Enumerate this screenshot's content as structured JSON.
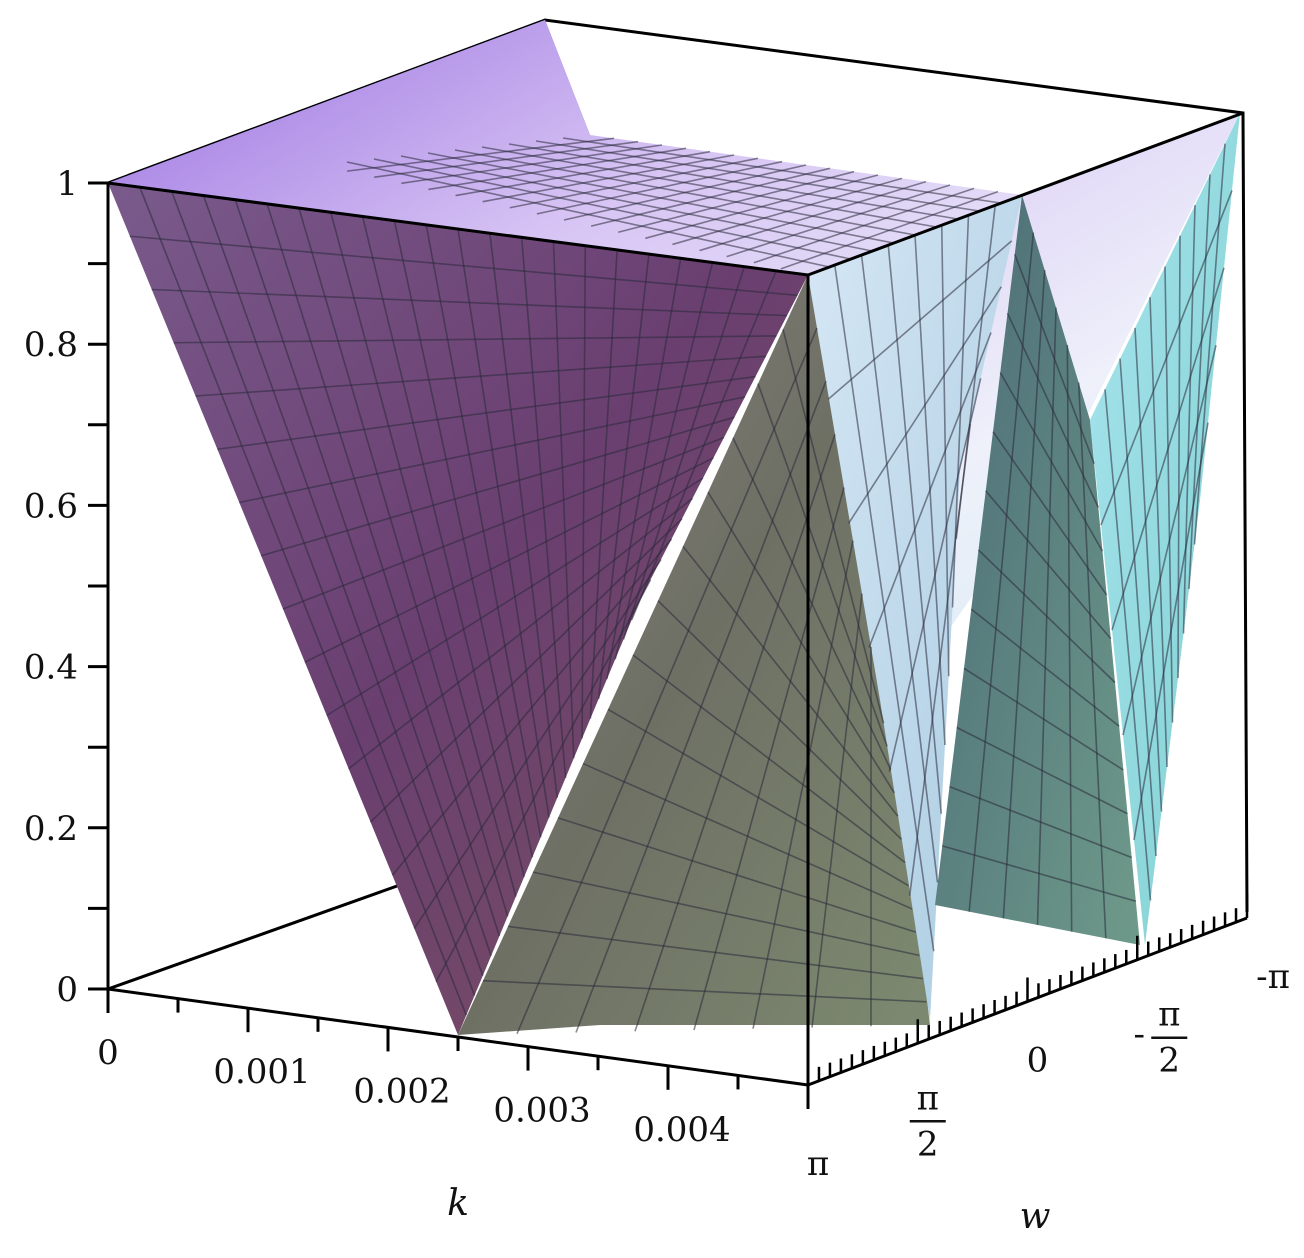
{
  "chart_data": {
    "type": "surface3d",
    "title": "",
    "xlabel": "k",
    "ylabel": "w",
    "zlabel": "",
    "xlim": [
      0,
      0.005
    ],
    "ylim": [
      3.14159,
      -3.14159
    ],
    "zlim": [
      0,
      1
    ],
    "x_ticks": [
      "0",
      "0.001",
      "0.002",
      "0.003",
      "0.004"
    ],
    "x_tick_values": [
      0,
      0.001,
      0.002,
      0.003,
      0.004
    ],
    "y_ticks": [
      {
        "value": 3.14159,
        "label": "π"
      },
      {
        "value": 1.5708,
        "label": "π/2",
        "num": "π",
        "den": "2"
      },
      {
        "value": 0,
        "label": "0"
      },
      {
        "value": -1.5708,
        "label": "-π/2",
        "sign": "-",
        "num": "π",
        "den": "2"
      },
      {
        "value": -3.14159,
        "label": "-π"
      }
    ],
    "z_ticks": [
      "0",
      "0.2",
      "0.4",
      "0.6",
      "0.8",
      "1"
    ],
    "z_tick_values": [
      0,
      0.2,
      0.4,
      0.6,
      0.8,
      1
    ],
    "surface_description": {
      "function_shape": "|cos(w * k / 0.0025 / 2)|-like ridges: value 1 at k=0 for all w, decreasing with k, with peaks reaching 1 along w lines",
      "peaks": [
        {
          "k": 0.005,
          "w": 3.14159,
          "z": 1
        },
        {
          "k": 0.005,
          "w": 0,
          "z": 0.95
        },
        {
          "k": 0.005,
          "w": -3.14159,
          "z": 1
        }
      ],
      "zero_line_k": 0.0025
    },
    "colormap": [
      "#6b3f6e",
      "#c8a8f0",
      "#e8e8f8",
      "#6f9aa0",
      "#9fe0e8"
    ],
    "grid": true,
    "box": true
  }
}
